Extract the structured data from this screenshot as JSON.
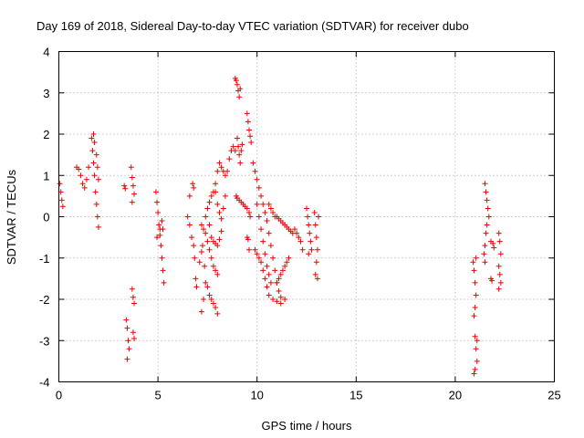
{
  "chart_data": {
    "type": "scatter",
    "title": "Day 169 of 2018, Sidereal Day-to-day VTEC variation (SDTVAR) for receiver dubo",
    "xlabel": "GPS time / hours",
    "ylabel": "SDTVAR / TECUs",
    "xlim": [
      0,
      25
    ],
    "ylim": [
      -4,
      4
    ],
    "xticks": [
      0,
      5,
      10,
      15,
      20,
      25
    ],
    "yticks": [
      -4,
      -3,
      -2,
      -1,
      0,
      1,
      2,
      3,
      4
    ],
    "xtick_labels": [
      "0",
      "5",
      "10",
      "15",
      "20",
      "25"
    ],
    "ytick_labels": [
      "-4",
      "-3",
      "-2",
      "-1",
      "0",
      "1",
      "2",
      "3",
      "4"
    ],
    "grid": true,
    "marker": "+",
    "color": "#ee0000",
    "series": [
      {
        "name": "SDTVAR",
        "segments": [
          [
            [
              0.05,
              0.8
            ],
            [
              0.1,
              0.6
            ],
            [
              0.15,
              0.4
            ],
            [
              0.2,
              0.25
            ]
          ],
          [
            [
              0.9,
              1.2
            ],
            [
              1.0,
              1.15
            ],
            [
              1.1,
              1.0
            ],
            [
              1.2,
              0.8
            ],
            [
              1.3,
              0.7
            ],
            [
              1.4,
              0.9
            ],
            [
              1.5,
              1.2
            ]
          ],
          [
            [
              1.65,
              1.9
            ],
            [
              1.7,
              1.6
            ],
            [
              1.75,
              1.3
            ],
            [
              1.8,
              1.0
            ],
            [
              1.85,
              0.6
            ],
            [
              1.9,
              0.3
            ],
            [
              1.95,
              0.0
            ],
            [
              2.0,
              -0.25
            ],
            [
              1.75,
              2.0
            ],
            [
              1.8,
              1.8
            ],
            [
              1.9,
              1.5
            ],
            [
              1.95,
              1.2
            ],
            [
              2.0,
              0.9
            ]
          ],
          [
            [
              3.3,
              0.75
            ],
            [
              3.35,
              0.68
            ]
          ],
          [
            [
              3.4,
              -2.5
            ],
            [
              3.45,
              -2.7
            ],
            [
              3.5,
              -3.0
            ],
            [
              3.55,
              -3.2
            ],
            [
              3.45,
              -3.45
            ]
          ],
          [
            [
              3.65,
              1.2
            ],
            [
              3.7,
              0.95
            ],
            [
              3.75,
              0.75
            ],
            [
              3.8,
              0.55
            ],
            [
              3.7,
              0.35
            ]
          ],
          [
            [
              3.7,
              -1.75
            ],
            [
              3.75,
              -1.95
            ],
            [
              3.8,
              -2.1
            ],
            [
              3.75,
              -2.8
            ],
            [
              3.8,
              -2.95
            ]
          ],
          [
            [
              4.9,
              0.6
            ],
            [
              4.95,
              0.35
            ],
            [
              5.0,
              0.1
            ],
            [
              5.05,
              -0.2
            ],
            [
              5.1,
              -0.45
            ],
            [
              5.15,
              -0.7
            ],
            [
              5.2,
              -1.0
            ],
            [
              5.25,
              -1.3
            ],
            [
              5.3,
              -1.6
            ],
            [
              4.95,
              -0.5
            ],
            [
              5.1,
              -0.3
            ],
            [
              5.2,
              -0.1
            ],
            [
              5.25,
              -0.3
            ]
          ],
          [
            [
              6.5,
              0.0
            ],
            [
              6.6,
              -0.2
            ],
            [
              6.7,
              -0.5
            ],
            [
              6.8,
              -0.7
            ],
            [
              6.85,
              -1.0
            ],
            [
              6.9,
              -1.5
            ],
            [
              6.95,
              -1.7
            ],
            [
              6.75,
              0.8
            ],
            [
              6.8,
              0.7
            ],
            [
              6.6,
              0.5
            ]
          ],
          [
            [
              7.1,
              -1.1
            ],
            [
              7.2,
              -0.85
            ],
            [
              7.25,
              -0.7
            ],
            [
              7.35,
              -1.2
            ],
            [
              7.4,
              -1.6
            ],
            [
              7.3,
              -2.0
            ],
            [
              7.2,
              -2.3
            ]
          ],
          [
            [
              7.4,
              0.0
            ],
            [
              7.5,
              0.2
            ],
            [
              7.6,
              0.35
            ],
            [
              7.7,
              0.5
            ],
            [
              7.8,
              0.6
            ],
            [
              7.9,
              0.8
            ],
            [
              8.0,
              1.1
            ],
            [
              8.1,
              1.3
            ],
            [
              8.2,
              1.2
            ],
            [
              8.3,
              1.1
            ],
            [
              8.4,
              1.0
            ],
            [
              8.5,
              1.1
            ],
            [
              8.6,
              1.4
            ],
            [
              8.7,
              1.6
            ],
            [
              8.8,
              1.7
            ],
            [
              8.9,
              1.6
            ]
          ],
          [
            [
              7.2,
              -0.2
            ],
            [
              7.3,
              -0.3
            ],
            [
              7.4,
              -0.4
            ],
            [
              7.5,
              -0.6
            ],
            [
              7.6,
              -0.8
            ],
            [
              7.7,
              -1.0
            ],
            [
              7.8,
              -1.2
            ],
            [
              7.9,
              -1.3
            ],
            [
              8.0,
              -1.4
            ]
          ],
          [
            [
              7.5,
              -1.7
            ],
            [
              7.6,
              -1.9
            ],
            [
              7.7,
              -2.0
            ],
            [
              7.8,
              -2.1
            ],
            [
              7.9,
              -2.2
            ],
            [
              8.0,
              -2.35
            ]
          ],
          [
            [
              7.6,
              -0.2
            ],
            [
              7.7,
              -0.5
            ],
            [
              7.8,
              -0.6
            ],
            [
              7.9,
              -0.65
            ],
            [
              8.0,
              -0.7
            ],
            [
              8.1,
              -0.55
            ],
            [
              8.2,
              -0.35
            ]
          ],
          [
            [
              7.9,
              0.6
            ],
            [
              8.0,
              0.3
            ],
            [
              8.1,
              0.1
            ],
            [
              8.2,
              -0.05
            ],
            [
              8.3,
              0.2
            ],
            [
              8.4,
              0.5
            ]
          ],
          [
            [
              8.9,
              3.35
            ],
            [
              8.95,
              3.3
            ],
            [
              9.0,
              3.2
            ],
            [
              9.05,
              3.05
            ],
            [
              9.1,
              2.9
            ],
            [
              9.15,
              3.1
            ]
          ],
          [
            [
              9.0,
              1.9
            ],
            [
              9.05,
              1.7
            ],
            [
              9.1,
              1.5
            ],
            [
              9.15,
              1.3
            ],
            [
              9.2,
              1.6
            ],
            [
              9.25,
              1.75
            ]
          ],
          [
            [
              8.95,
              0.5
            ],
            [
              9.0,
              0.45
            ],
            [
              9.1,
              0.4
            ],
            [
              9.2,
              0.35
            ]
          ],
          [
            [
              9.5,
              2.5
            ],
            [
              9.55,
              2.3
            ],
            [
              9.6,
              2.1
            ],
            [
              9.65,
              1.95
            ],
            [
              9.7,
              1.8
            ]
          ],
          [
            [
              9.3,
              0.3
            ],
            [
              9.4,
              0.25
            ],
            [
              9.5,
              0.2
            ],
            [
              9.6,
              0.1
            ],
            [
              9.65,
              0.0
            ]
          ],
          [
            [
              9.5,
              -0.5
            ],
            [
              9.55,
              -0.55
            ],
            [
              9.6,
              -0.8
            ]
          ],
          [
            [
              9.8,
              1.3
            ],
            [
              9.9,
              1.1
            ],
            [
              10.0,
              0.9
            ],
            [
              10.1,
              0.7
            ],
            [
              10.2,
              0.5
            ],
            [
              10.3,
              0.3
            ],
            [
              10.4,
              0.1
            ],
            [
              10.5,
              -0.1
            ],
            [
              10.6,
              -0.4
            ],
            [
              10.7,
              -0.7
            ],
            [
              10.8,
              -1.0
            ],
            [
              10.9,
              -1.3
            ],
            [
              11.0,
              -1.6
            ],
            [
              11.1,
              -1.8
            ],
            [
              11.2,
              -1.95
            ]
          ],
          [
            [
              9.9,
              -0.8
            ],
            [
              10.0,
              -0.9
            ],
            [
              10.1,
              -1.0
            ],
            [
              10.2,
              -1.1
            ],
            [
              10.3,
              -1.3
            ],
            [
              10.4,
              -1.5
            ],
            [
              10.5,
              -1.7
            ],
            [
              10.6,
              -1.9
            ],
            [
              10.8,
              -2.0
            ],
            [
              11.0,
              -2.05
            ],
            [
              11.2,
              -2.1
            ],
            [
              11.4,
              -2.0
            ]
          ],
          [
            [
              10.0,
              0.3
            ],
            [
              10.1,
              0.0
            ],
            [
              10.2,
              -0.3
            ],
            [
              10.3,
              -0.6
            ],
            [
              10.4,
              -0.9
            ],
            [
              10.5,
              -1.2
            ],
            [
              10.6,
              -1.4
            ],
            [
              10.7,
              -1.6
            ]
          ],
          [
            [
              10.6,
              0.3
            ],
            [
              10.7,
              0.2
            ],
            [
              10.8,
              0.1
            ],
            [
              10.9,
              0.0
            ],
            [
              11.0,
              0.0
            ],
            [
              11.1,
              -0.05
            ],
            [
              11.2,
              -0.1
            ],
            [
              11.3,
              -0.15
            ],
            [
              11.4,
              -0.2
            ],
            [
              11.5,
              -0.25
            ],
            [
              11.6,
              -0.3
            ],
            [
              11.7,
              -0.35
            ],
            [
              11.8,
              -0.4
            ]
          ],
          [
            [
              11.0,
              -1.6
            ],
            [
              11.1,
              -1.5
            ],
            [
              11.2,
              -1.4
            ],
            [
              11.3,
              -1.3
            ],
            [
              11.4,
              -1.2
            ],
            [
              11.5,
              -1.1
            ],
            [
              11.6,
              -1.0
            ]
          ],
          [
            [
              11.9,
              -0.3
            ],
            [
              12.0,
              -0.4
            ],
            [
              12.1,
              -0.5
            ],
            [
              12.2,
              -0.6
            ],
            [
              12.3,
              -0.8
            ]
          ],
          [
            [
              12.5,
              0.2
            ],
            [
              12.55,
              0.0
            ],
            [
              12.6,
              -0.2
            ],
            [
              12.65,
              -0.4
            ],
            [
              12.7,
              -0.6
            ],
            [
              12.75,
              -0.8
            ],
            [
              12.6,
              -0.9
            ]
          ],
          [
            [
              12.9,
              0.1
            ],
            [
              12.95,
              -0.2
            ],
            [
              13.0,
              -0.5
            ],
            [
              13.05,
              -0.8
            ],
            [
              13.0,
              -1.1
            ],
            [
              12.95,
              -1.4
            ],
            [
              13.05,
              -1.5
            ],
            [
              13.1,
              0.0
            ]
          ],
          [
            [
              20.9,
              -1.1
            ],
            [
              20.95,
              -1.3
            ],
            [
              21.0,
              -1.6
            ],
            [
              21.05,
              -1.9
            ],
            [
              21.0,
              -2.2
            ],
            [
              20.95,
              -2.4
            ],
            [
              21.05,
              -1.0
            ]
          ],
          [
            [
              21.0,
              -2.9
            ],
            [
              21.05,
              -3.2
            ],
            [
              21.1,
              -3.5
            ],
            [
              21.0,
              -3.7
            ],
            [
              20.95,
              -3.8
            ],
            [
              21.1,
              -3.0
            ]
          ],
          [
            [
              21.5,
              0.8
            ],
            [
              21.55,
              0.6
            ],
            [
              21.6,
              0.4
            ],
            [
              21.65,
              0.2
            ],
            [
              21.7,
              0.0
            ],
            [
              21.6,
              -0.2
            ],
            [
              21.55,
              -0.4
            ],
            [
              21.5,
              -0.7
            ],
            [
              21.45,
              -0.9
            ],
            [
              21.5,
              -1.1
            ]
          ],
          [
            [
              21.8,
              -0.6
            ],
            [
              21.9,
              -0.65
            ],
            [
              21.95,
              -0.75
            ],
            [
              21.8,
              -1.5
            ],
            [
              21.85,
              -1.55
            ]
          ],
          [
            [
              22.2,
              -0.4
            ],
            [
              22.25,
              -0.6
            ],
            [
              22.3,
              -0.9
            ],
            [
              22.2,
              -1.2
            ],
            [
              22.25,
              -1.4
            ],
            [
              22.3,
              -1.6
            ],
            [
              22.2,
              -1.75
            ]
          ]
        ]
      }
    ]
  }
}
